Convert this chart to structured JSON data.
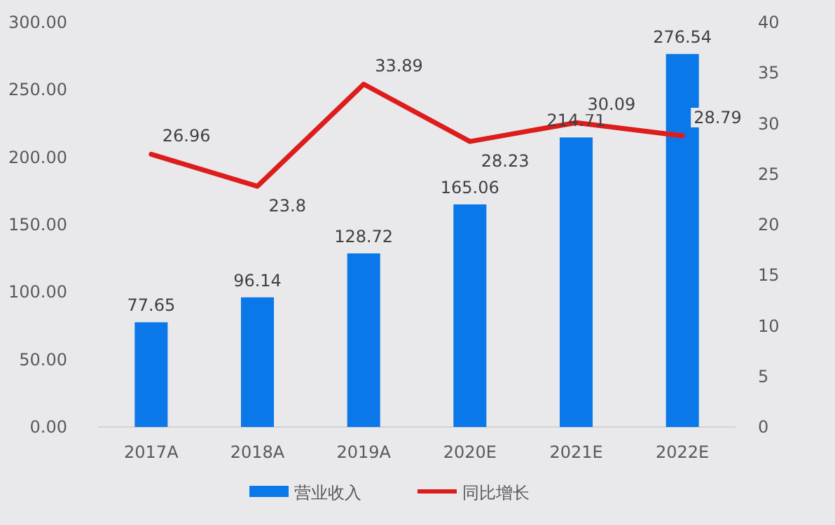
{
  "chart_data": {
    "type": "bar",
    "categories": [
      "2017A",
      "2018A",
      "2019A",
      "2020E",
      "2021E",
      "2022E"
    ],
    "series": [
      {
        "name": "营业收入",
        "color": "#0a78e8",
        "values": [
          77.65,
          96.14,
          128.72,
          165.06,
          214.71,
          276.54
        ]
      },
      {
        "name": "同比增长",
        "type": "line",
        "axis": "y2",
        "color": "#dd1c1c",
        "values": [
          26.96,
          23.8,
          33.89,
          28.23,
          30.09,
          28.79
        ]
      }
    ],
    "ylim": [
      0,
      300
    ],
    "yticks": [
      {
        "value": 0,
        "label": "0.00"
      },
      {
        "value": 50,
        "label": "50.00"
      },
      {
        "value": 100,
        "label": "100.00"
      },
      {
        "value": 150,
        "label": "150.00"
      },
      {
        "value": 200,
        "label": "200.00"
      },
      {
        "value": 250,
        "label": "250.00"
      },
      {
        "value": 300,
        "label": "300.00"
      }
    ],
    "y2lim": [
      0,
      40
    ],
    "y2ticks": [
      0,
      5,
      10,
      15,
      20,
      25,
      30,
      35,
      40
    ],
    "data_labels": true,
    "legend": "bottom",
    "grid": false,
    "marker": "none",
    "line_style": "solid"
  }
}
